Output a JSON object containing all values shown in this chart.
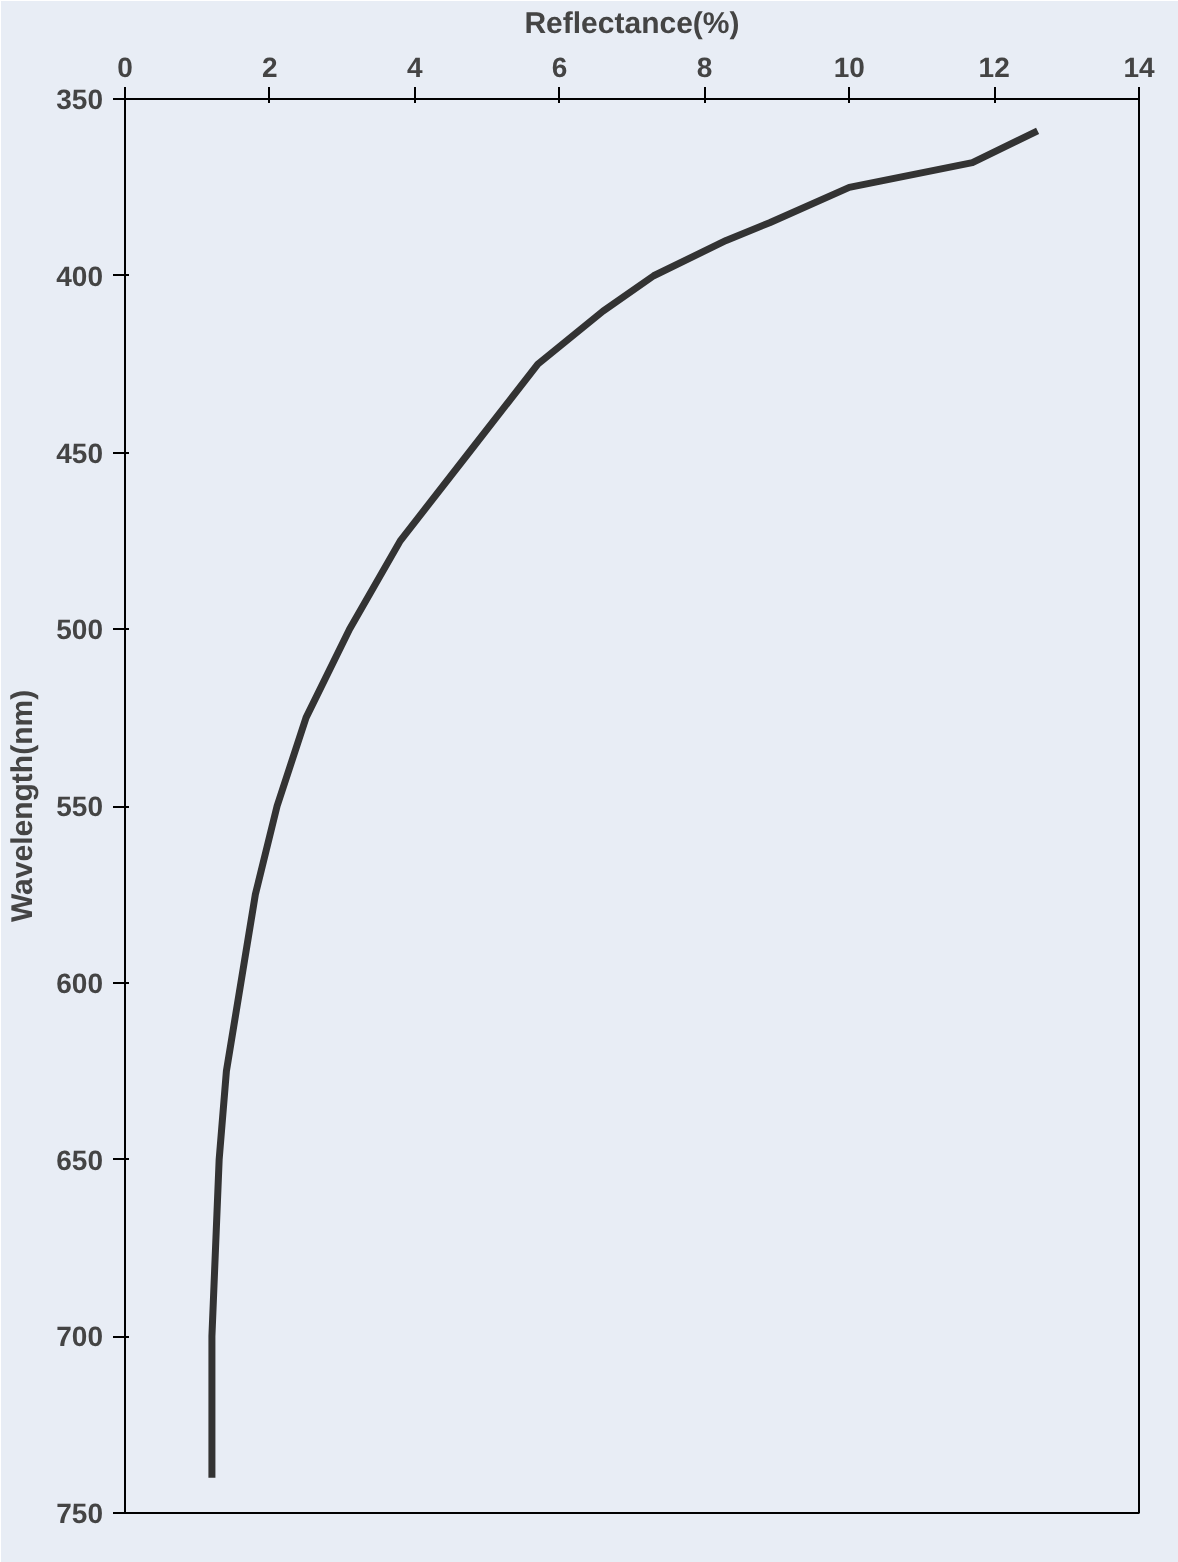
{
  "chart_data": {
    "type": "line",
    "xlabel": "Reflectance(%)",
    "ylabel": "Wavelength(nm)",
    "x": [
      12.6,
      11.7,
      10.0,
      8.9,
      8.3,
      7.3,
      6.6,
      5.7,
      4.75,
      3.8,
      3.1,
      2.5,
      2.1,
      1.8,
      1.6,
      1.4,
      1.3,
      1.25,
      1.2,
      1.2,
      1.2
    ],
    "series": [
      {
        "color": "#333333",
        "values": [
          359,
          368,
          375,
          385,
          390,
          400,
          410,
          425,
          450,
          475,
          500,
          525,
          550,
          575,
          600,
          625,
          650,
          675,
          700,
          720,
          740
        ]
      }
    ],
    "xlim": [
      0,
      14
    ],
    "xticks": [
      0,
      2,
      4,
      6,
      8,
      10,
      12,
      14
    ],
    "ylim": [
      750,
      350
    ],
    "yticks": [
      350,
      400,
      450,
      500,
      550,
      600,
      650,
      700,
      750
    ],
    "grid": false,
    "marker": "none",
    "line_style": "solid"
  }
}
